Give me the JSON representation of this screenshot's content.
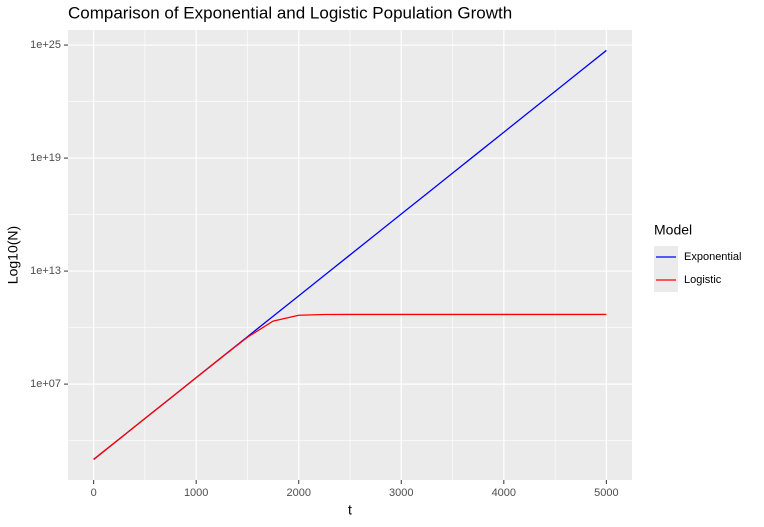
{
  "chart_data": {
    "type": "line",
    "title": "Comparison of Exponential and Logistic Population Growth",
    "x_label": "t",
    "y_label": "Log10(N)",
    "legend_title": "Model",
    "legend_position": "right",
    "log_y": true,
    "grid": true,
    "x": [
      0,
      250,
      500,
      750,
      1000,
      1250,
      1500,
      1750,
      2000,
      2250,
      2500,
      2750,
      3000,
      3250,
      3500,
      3750,
      4000,
      4250,
      4500,
      4750,
      5000
    ],
    "series": [
      {
        "name": "Exponential",
        "color": "#0000ff",
        "values": [
          1000,
          12182,
          148413,
          1808000,
          22026000,
          268300000,
          3269000000,
          39820000000,
          485200000000,
          5911000000000,
          72000000000000,
          877000000000000,
          1.069e+16,
          1.302e+17,
          1.586e+18,
          1.932e+19,
          2.354e+20,
          2.867e+21,
          3.493e+22,
          4.255e+23,
          5.185e+24
        ]
      },
      {
        "name": "Logistic",
        "color": "#ff0000",
        "values": [
          1000,
          12182,
          148413,
          1808000,
          22016000,
          266900000,
          3068000000,
          22170000000,
          45330000000,
          49580000000,
          49965000000,
          49997000000,
          50000000000,
          50000000000,
          50000000000,
          50000000000,
          50000000000,
          50000000000,
          50000000000,
          50000000000,
          50000000000
        ]
      }
    ],
    "xlim": [
      -250,
      5250
    ],
    "xticks": [
      0,
      1000,
      2000,
      3000,
      4000,
      5000
    ],
    "ylim": [
      81,
      6.3e+25
    ],
    "yticks": [
      {
        "value": 10000000,
        "label": "1e+07"
      },
      {
        "value": 10000000000000,
        "label": "1e+13"
      },
      {
        "value": 1e+19,
        "label": "1e+19"
      },
      {
        "value": 1e+25,
        "label": "1e+25"
      }
    ]
  }
}
